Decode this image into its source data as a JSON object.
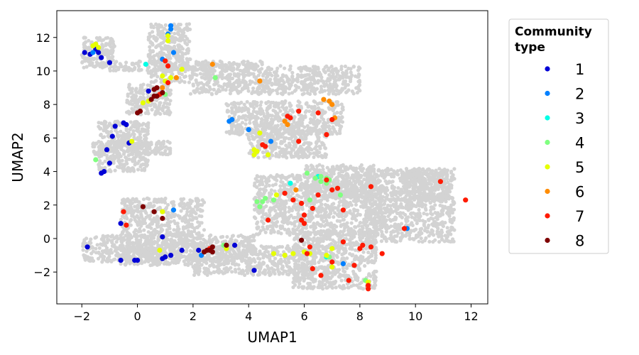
{
  "chart_data": {
    "type": "scatter",
    "title": "",
    "xlabel": "UMAP1",
    "ylabel": "UMAP2",
    "xlim": [
      -2.9,
      12.6
    ],
    "ylim": [
      -3.9,
      13.6
    ],
    "xticks": [
      -2,
      0,
      2,
      4,
      6,
      8,
      10,
      12
    ],
    "yticks": [
      -2,
      0,
      2,
      4,
      6,
      8,
      10,
      12
    ],
    "xtick_labels": [
      "−2",
      "0",
      "2",
      "4",
      "6",
      "8",
      "10",
      "12"
    ],
    "ytick_labels": [
      "−2",
      "0",
      "2",
      "4",
      "6",
      "8",
      "10",
      "12"
    ],
    "grid": false,
    "legend": {
      "title": "Community type",
      "title_lines": [
        "Community",
        "type"
      ],
      "position": "outside right"
    },
    "background_color": "#d3d3d3",
    "background_regions": [
      {
        "xr": [
          -2.0,
          -0.8
        ],
        "yr": [
          10.2,
          12.0
        ]
      },
      {
        "xr": [
          -1.0,
          4.5
        ],
        "yr": [
          10.0,
          10.6
        ]
      },
      {
        "xr": [
          0.4,
          1.9
        ],
        "yr": [
          9.3,
          12.8
        ]
      },
      {
        "xr": [
          1.9,
          8.0
        ],
        "yr": [
          8.6,
          10.3
        ]
      },
      {
        "xr": [
          -0.4,
          1.2
        ],
        "yr": [
          7.4,
          9.2
        ]
      },
      {
        "xr": [
          3.2,
          7.4
        ],
        "yr": [
          6.2,
          8.2
        ]
      },
      {
        "xr": [
          4.0,
          6.8
        ],
        "yr": [
          4.8,
          6.6
        ]
      },
      {
        "xr": [
          -1.4,
          0.4
        ],
        "yr": [
          4.0,
          7.0
        ]
      },
      {
        "xr": [
          -1.6,
          1.2
        ],
        "yr": [
          5.0,
          5.8
        ]
      },
      {
        "xr": [
          -0.6,
          2.4
        ],
        "yr": [
          -1.6,
          2.4
        ]
      },
      {
        "xr": [
          -2.0,
          4.2
        ],
        "yr": [
          -1.4,
          0.2
        ]
      },
      {
        "xr": [
          2.0,
          6.4
        ],
        "yr": [
          -2.2,
          -0.4
        ]
      },
      {
        "xr": [
          4.2,
          8.8
        ],
        "yr": [
          0.2,
          3.8
        ]
      },
      {
        "xr": [
          5.6,
          8.6
        ],
        "yr": [
          -3.0,
          0.4
        ]
      },
      {
        "xr": [
          8.2,
          11.4
        ],
        "yr": [
          -0.2,
          4.2
        ]
      },
      {
        "xr": [
          9.6,
          11.2
        ],
        "yr": [
          2.2,
          4.2
        ]
      },
      {
        "xr": [
          6.0,
          8.6
        ],
        "yr": [
          2.4,
          4.4
        ]
      }
    ],
    "series": [
      {
        "name": "1",
        "color": "#0000d6",
        "points": [
          [
            -1.8,
            -0.5
          ],
          [
            -0.6,
            -1.3
          ],
          [
            -0.1,
            -1.3
          ],
          [
            0,
            -1.3
          ],
          [
            0.9,
            -1.2
          ],
          [
            1.0,
            -1.1
          ],
          [
            1.2,
            -1.0
          ],
          [
            1.6,
            -0.7
          ],
          [
            2.2,
            -0.7
          ],
          [
            0.9,
            0.1
          ],
          [
            3.5,
            -0.4
          ],
          [
            4.2,
            -1.9
          ],
          [
            -0.6,
            0.9
          ],
          [
            -1.3,
            3.9
          ],
          [
            -1.0,
            4.5
          ],
          [
            -1.1,
            5.3
          ],
          [
            -0.9,
            6.1
          ],
          [
            -0.8,
            6.7
          ],
          [
            -0.5,
            6.9
          ],
          [
            -0.3,
            5.7
          ],
          [
            0.4,
            8.8
          ],
          [
            -1.9,
            11.1
          ],
          [
            -1.7,
            11.0
          ],
          [
            -1.4,
            11.1
          ],
          [
            -1.3,
            10.8
          ],
          [
            -1.0,
            10.5
          ],
          [
            -1.5,
            11.3
          ],
          [
            0.9,
            8.7
          ],
          [
            -0.4,
            6.8
          ],
          [
            -1.2,
            4.0
          ]
        ]
      },
      {
        "name": "2",
        "color": "#0080ff",
        "points": [
          [
            1.2,
            12.7
          ],
          [
            1.2,
            12.5
          ],
          [
            1.1,
            12.2
          ],
          [
            1.3,
            11.1
          ],
          [
            0.9,
            10.7
          ],
          [
            1.3,
            1.7
          ],
          [
            3.3,
            7.0
          ],
          [
            4.0,
            6.5
          ],
          [
            4.8,
            5.8
          ],
          [
            7.4,
            -1.5
          ],
          [
            9.7,
            0.6
          ],
          [
            -1.6,
            11.1
          ],
          [
            2.3,
            -1.0
          ],
          [
            3.4,
            7.1
          ]
        ]
      },
      {
        "name": "3",
        "color": "#00ffe6",
        "points": [
          [
            0.3,
            10.4
          ],
          [
            5.5,
            3.3
          ],
          [
            6.8,
            -1.1
          ],
          [
            6.5,
            3.7
          ]
        ]
      },
      {
        "name": "4",
        "color": "#80ff80",
        "points": [
          [
            -1.5,
            4.7
          ],
          [
            1.0,
            8.6
          ],
          [
            2.8,
            9.6
          ],
          [
            3.1,
            -0.4
          ],
          [
            4.3,
            2.2
          ],
          [
            4.6,
            2.4
          ],
          [
            4.9,
            2.3
          ],
          [
            4.4,
            1.9
          ],
          [
            6.1,
            3.9
          ],
          [
            6.4,
            3.6
          ],
          [
            6.6,
            3.7
          ],
          [
            6.8,
            3.6
          ],
          [
            6.8,
            3.3
          ],
          [
            7.3,
            2.6
          ],
          [
            6.2,
            2.3
          ],
          [
            6.6,
            3.4
          ],
          [
            6.9,
            3.5
          ],
          [
            4.5,
            2.2
          ],
          [
            6.9,
            -1.1
          ],
          [
            8.2,
            -2.5
          ]
        ]
      },
      {
        "name": "5",
        "color": "#e6ff00",
        "points": [
          [
            -1.6,
            11.5
          ],
          [
            -1.4,
            11.4
          ],
          [
            -1.5,
            11.6
          ],
          [
            1.1,
            12.1
          ],
          [
            1.1,
            11.8
          ],
          [
            1.6,
            10.1
          ],
          [
            0.9,
            9.7
          ],
          [
            1.2,
            9.6
          ],
          [
            0.4,
            8.2
          ],
          [
            0.2,
            8.1
          ],
          [
            -0.2,
            5.8
          ],
          [
            0.8,
            -0.7
          ],
          [
            0.9,
            1.6
          ],
          [
            3.2,
            -0.6
          ],
          [
            4.2,
            5.3
          ],
          [
            4.2,
            5.0
          ],
          [
            4.3,
            5.2
          ],
          [
            4.7,
            5.0
          ],
          [
            4.4,
            6.3
          ],
          [
            4.9,
            -0.9
          ],
          [
            5.3,
            -1.0
          ],
          [
            5.6,
            -0.9
          ],
          [
            6.0,
            -0.8
          ],
          [
            6.2,
            -0.9
          ],
          [
            7.0,
            -0.6
          ],
          [
            7.0,
            -1.7
          ],
          [
            8.3,
            -2.6
          ],
          [
            5.0,
            2.6
          ],
          [
            6.8,
            -1.0
          ],
          [
            1.0,
            9.4
          ]
        ]
      },
      {
        "name": "6",
        "color": "#ff8c00",
        "points": [
          [
            2.7,
            10.4
          ],
          [
            4.4,
            9.4
          ],
          [
            1.4,
            9.6
          ],
          [
            5.3,
            7.0
          ],
          [
            5.4,
            6.8
          ],
          [
            5.7,
            2.9
          ],
          [
            6.7,
            8.3
          ],
          [
            6.9,
            8.2
          ],
          [
            7.0,
            8.0
          ],
          [
            7.1,
            7.2
          ],
          [
            0.9,
            9.0
          ]
        ]
      },
      {
        "name": "7",
        "color": "#ff1a00",
        "points": [
          [
            1.0,
            10.6
          ],
          [
            1.1,
            10.3
          ],
          [
            1.1,
            9.3
          ],
          [
            0.8,
            8.6
          ],
          [
            4.5,
            5.6
          ],
          [
            4.6,
            5.5
          ],
          [
            5.4,
            7.3
          ],
          [
            5.5,
            7.2
          ],
          [
            5.8,
            7.6
          ],
          [
            5.8,
            5.8
          ],
          [
            6.5,
            7.5
          ],
          [
            6.8,
            6.2
          ],
          [
            7.0,
            7.1
          ],
          [
            5.3,
            2.7
          ],
          [
            5.6,
            2.3
          ],
          [
            5.9,
            2.1
          ],
          [
            6.0,
            1.4
          ],
          [
            6.5,
            2.6
          ],
          [
            6.8,
            3.5
          ],
          [
            7.0,
            2.9
          ],
          [
            7.2,
            3.0
          ],
          [
            7.4,
            1.7
          ],
          [
            6.3,
            1.8
          ],
          [
            6.0,
            0.9
          ],
          [
            4.7,
            1.1
          ],
          [
            6.2,
            -0.5
          ],
          [
            6.3,
            -1.8
          ],
          [
            6.6,
            -2.2
          ],
          [
            7.0,
            -1.4
          ],
          [
            7.4,
            -0.2
          ],
          [
            7.8,
            -1.6
          ],
          [
            8.0,
            -0.6
          ],
          [
            8.1,
            -0.4
          ],
          [
            8.4,
            -0.5
          ],
          [
            8.8,
            -0.9
          ],
          [
            8.3,
            -2.8
          ],
          [
            8.3,
            -3.0
          ],
          [
            7.6,
            -2.5
          ],
          [
            8.4,
            3.1
          ],
          [
            9.6,
            0.6
          ],
          [
            10.9,
            3.4
          ],
          [
            11.8,
            2.3
          ],
          [
            -0.5,
            1.6
          ],
          [
            -0.4,
            0.8
          ],
          [
            2.4,
            -0.8
          ],
          [
            2.6,
            -0.6
          ],
          [
            6.1,
            -0.9
          ],
          [
            5.9,
            1.1
          ]
        ]
      },
      {
        "name": "8",
        "color": "#7f0000",
        "points": [
          [
            0.2,
            1.9
          ],
          [
            0.6,
            1.6
          ],
          [
            0.9,
            1.2
          ],
          [
            2.4,
            -0.8
          ],
          [
            2.6,
            -0.7
          ],
          [
            2.7,
            -0.5
          ],
          [
            2.7,
            -0.8
          ],
          [
            3.2,
            -0.4
          ],
          [
            0.0,
            7.5
          ],
          [
            0.1,
            7.6
          ],
          [
            0.5,
            8.3
          ],
          [
            0.6,
            8.5
          ],
          [
            0.7,
            8.5
          ],
          [
            0.6,
            8.9
          ],
          [
            0.7,
            9.0
          ],
          [
            0.9,
            8.7
          ],
          [
            5.9,
            -0.1
          ],
          [
            2.5,
            -0.7
          ]
        ]
      }
    ]
  }
}
